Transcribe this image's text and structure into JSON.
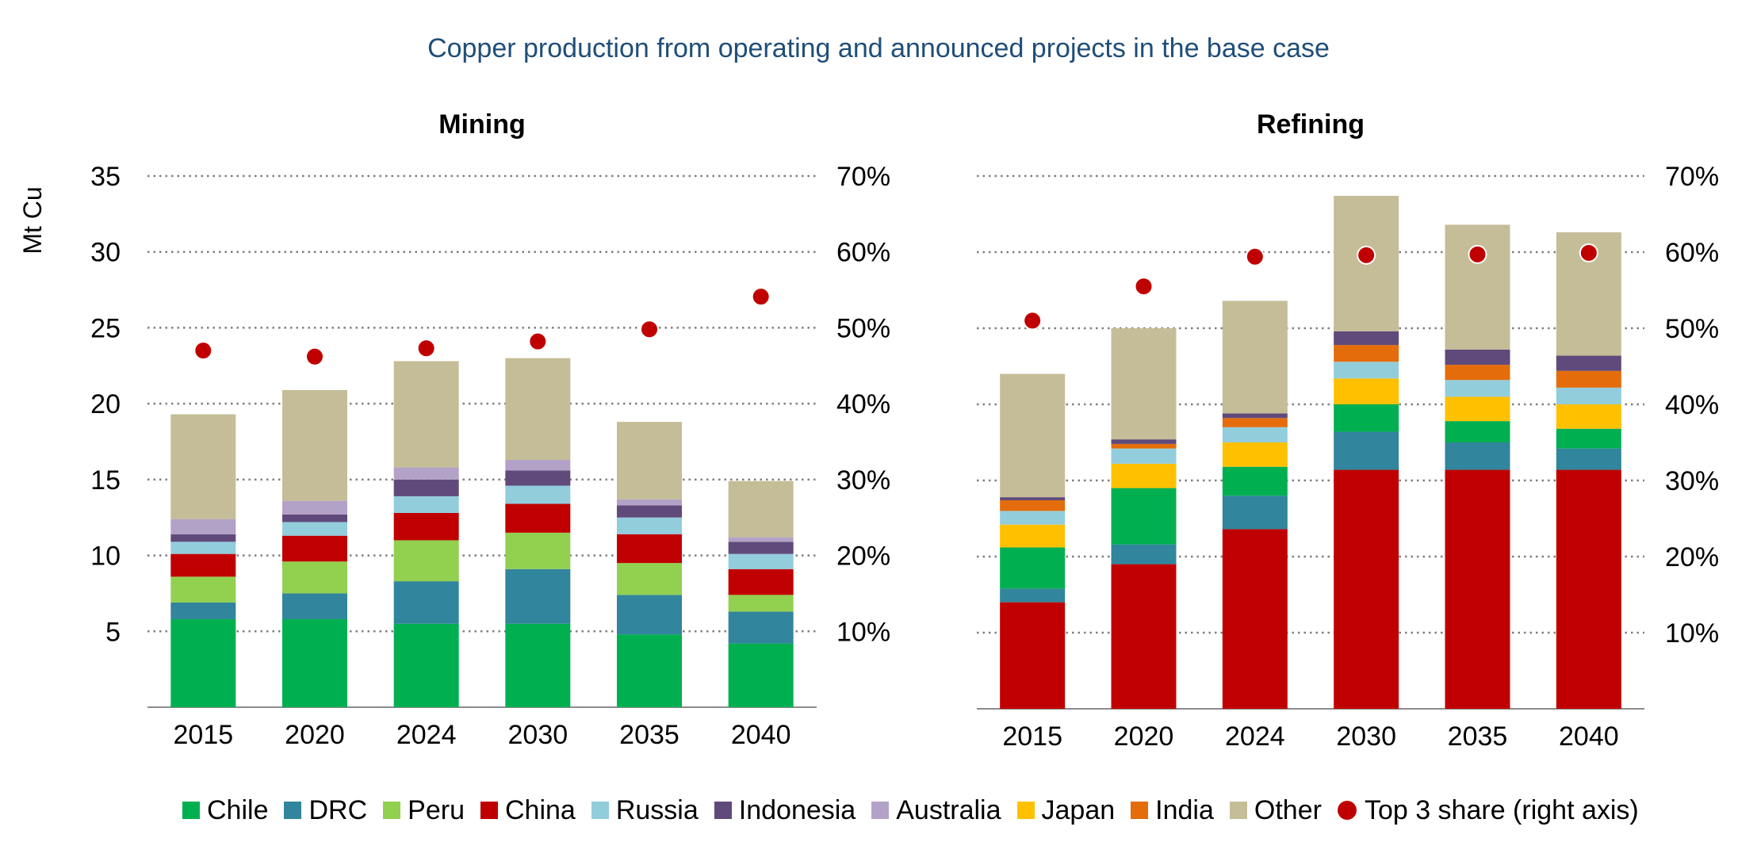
{
  "title": "Copper production from operating and announced projects in the base case",
  "colors": {
    "Chile": "#00b050",
    "DRC": "#31859c",
    "Peru": "#92d050",
    "China": "#c00000",
    "Russia": "#92cddc",
    "Indonesia": "#604a7b",
    "Australia": "#b3a2c7",
    "Japan": "#ffc000",
    "India": "#e46c0a",
    "Other": "#c4bd97",
    "Top 3 share (right axis)": "#c00000",
    "title": "#1f4e79",
    "grid": "#7f7f7f"
  },
  "legend": [
    "Chile",
    "DRC",
    "Peru",
    "China",
    "Russia",
    "Indonesia",
    "Australia",
    "Japan",
    "India",
    "Other",
    "Top 3 share (right axis)"
  ],
  "chart_data": [
    {
      "type": "bar",
      "stacked": true,
      "title": "Mining",
      "ylabel": "Mt Cu",
      "ylim": [
        0,
        35
      ],
      "yticks": [
        5,
        10,
        15,
        20,
        25,
        30,
        35
      ],
      "y2lim": [
        0,
        0.7
      ],
      "y2ticks": [
        "10%",
        "20%",
        "30%",
        "40%",
        "50%",
        "60%",
        "70%"
      ],
      "grid": true,
      "categories": [
        "2015",
        "2020",
        "2024",
        "2030",
        "2035",
        "2040"
      ],
      "series": [
        {
          "name": "Chile",
          "values": [
            5.8,
            5.8,
            5.5,
            5.5,
            4.8,
            4.2
          ]
        },
        {
          "name": "DRC",
          "values": [
            1.1,
            1.7,
            2.8,
            3.6,
            2.6,
            2.1
          ]
        },
        {
          "name": "Peru",
          "values": [
            1.7,
            2.1,
            2.7,
            2.4,
            2.1,
            1.1
          ]
        },
        {
          "name": "China",
          "values": [
            1.5,
            1.7,
            1.8,
            1.9,
            1.9,
            1.7
          ]
        },
        {
          "name": "Russia",
          "values": [
            0.8,
            0.9,
            1.1,
            1.2,
            1.1,
            1.0
          ]
        },
        {
          "name": "Indonesia",
          "values": [
            0.5,
            0.5,
            1.1,
            1.0,
            0.8,
            0.8
          ]
        },
        {
          "name": "Australia",
          "values": [
            1.0,
            0.9,
            0.8,
            0.7,
            0.4,
            0.3
          ]
        },
        {
          "name": "Other",
          "values": [
            6.9,
            7.3,
            7.0,
            6.7,
            5.1,
            3.7
          ]
        }
      ],
      "line_series": {
        "name": "Top 3 share (right axis)",
        "values": [
          0.47,
          0.462,
          0.473,
          0.482,
          0.498,
          0.541
        ]
      }
    },
    {
      "type": "bar",
      "stacked": true,
      "title": "Refining",
      "ylim": [
        0,
        35
      ],
      "y2lim": [
        0,
        0.7
      ],
      "y2ticks": [
        "10%",
        "20%",
        "30%",
        "40%",
        "50%",
        "60%",
        "70%"
      ],
      "grid": true,
      "categories": [
        "2015",
        "2020",
        "2024",
        "2030",
        "2035",
        "2040"
      ],
      "series": [
        {
          "name": "China",
          "values": [
            7.0,
            9.5,
            11.8,
            15.7,
            15.7,
            15.7
          ]
        },
        {
          "name": "DRC",
          "values": [
            0.9,
            1.3,
            2.2,
            2.5,
            1.8,
            1.4
          ]
        },
        {
          "name": "Chile",
          "values": [
            2.7,
            3.7,
            1.9,
            1.8,
            1.4,
            1.3
          ]
        },
        {
          "name": "Japan",
          "values": [
            1.5,
            1.6,
            1.6,
            1.7,
            1.6,
            1.6
          ]
        },
        {
          "name": "Russia",
          "values": [
            0.9,
            1.0,
            1.0,
            1.1,
            1.1,
            1.1
          ]
        },
        {
          "name": "India",
          "values": [
            0.7,
            0.3,
            0.6,
            1.1,
            1.0,
            1.1
          ]
        },
        {
          "name": "Indonesia",
          "values": [
            0.2,
            0.3,
            0.3,
            0.9,
            1.0,
            1.0
          ]
        },
        {
          "name": "Other",
          "values": [
            8.1,
            7.3,
            7.4,
            8.9,
            8.2,
            8.1
          ]
        }
      ],
      "line_series": {
        "name": "Top 3 share (right axis)",
        "values": [
          0.51,
          0.555,
          0.594,
          0.596,
          0.597,
          0.599
        ]
      }
    }
  ]
}
